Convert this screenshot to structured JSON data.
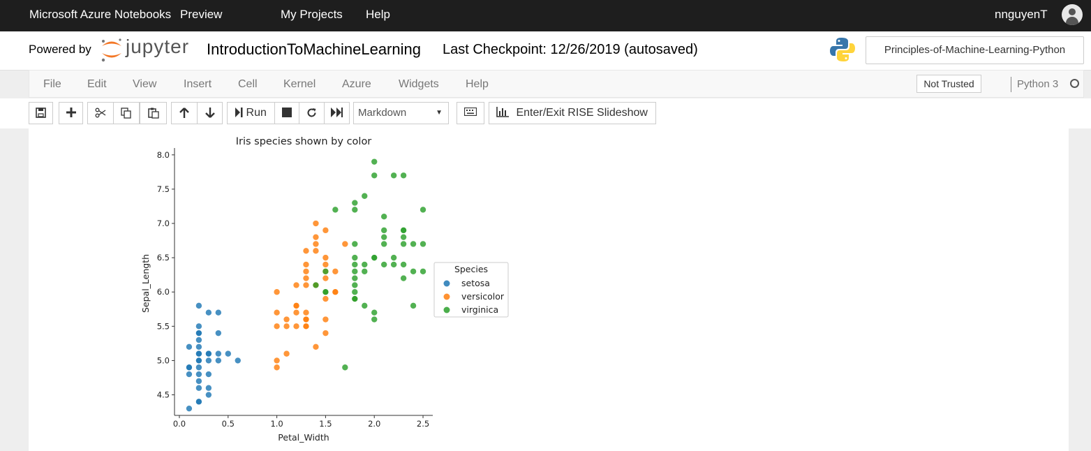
{
  "topbar": {
    "brand": "Microsoft Azure Notebooks",
    "preview": "Preview",
    "my_projects": "My Projects",
    "help": "Help",
    "username": "nnguyenT"
  },
  "header": {
    "powered_by": "Powered by",
    "jupyter_word": "jupyter",
    "notebook_name": "IntroductionToMachineLearning",
    "checkpoint": "Last Checkpoint: 12/26/2019  (autosaved)",
    "project_button": "Principles-of-Machine-Learning-Python"
  },
  "menubar": {
    "items": [
      "File",
      "Edit",
      "View",
      "Insert",
      "Cell",
      "Kernel",
      "Azure",
      "Widgets",
      "Help"
    ],
    "not_trusted": "Not Trusted",
    "kernel_name": "Python 3"
  },
  "toolbar": {
    "run_label": "Run",
    "cell_type": "Markdown",
    "rise_label": "Enter/Exit RISE Slideshow"
  },
  "colors": {
    "setosa": "#1f77b4",
    "versicolor": "#ff7f0e",
    "virginica": "#2ca02c"
  },
  "chart_data": {
    "type": "scatter",
    "title": "Iris species shown by color",
    "xlabel": "Petal_Width",
    "ylabel": "Sepal_Length",
    "xlim": [
      -0.05,
      2.6
    ],
    "ylim": [
      4.2,
      8.1
    ],
    "xticks": [
      "0.0",
      "0.5",
      "1.0",
      "1.5",
      "2.0",
      "2.5"
    ],
    "yticks": [
      "4.5",
      "5.0",
      "5.5",
      "6.0",
      "6.5",
      "7.0",
      "7.5",
      "8.0"
    ],
    "legend": {
      "title": "Species",
      "placement": "right"
    },
    "series": [
      {
        "name": "setosa",
        "x": [
          0.1,
          0.1,
          0.1,
          0.1,
          0.1,
          0.2,
          0.2,
          0.2,
          0.2,
          0.2,
          0.2,
          0.2,
          0.2,
          0.2,
          0.2,
          0.2,
          0.2,
          0.2,
          0.2,
          0.2,
          0.2,
          0.3,
          0.3,
          0.3,
          0.3,
          0.3,
          0.3,
          0.3,
          0.4,
          0.4,
          0.4,
          0.4,
          0.5,
          0.6
        ],
        "y": [
          4.3,
          4.8,
          4.9,
          5.2,
          4.9,
          4.4,
          4.6,
          4.7,
          4.8,
          4.9,
          5.0,
          5.1,
          5.2,
          5.3,
          5.4,
          5.5,
          5.8,
          4.4,
          5.0,
          5.1,
          5.4,
          4.5,
          4.6,
          4.8,
          5.0,
          5.1,
          5.7,
          5.1,
          5.0,
          5.1,
          5.4,
          5.7,
          5.1,
          5.0
        ]
      },
      {
        "name": "versicolor",
        "x": [
          1.0,
          1.0,
          1.0,
          1.0,
          1.0,
          1.1,
          1.1,
          1.1,
          1.2,
          1.2,
          1.2,
          1.2,
          1.2,
          1.3,
          1.3,
          1.3,
          1.3,
          1.3,
          1.3,
          1.3,
          1.3,
          1.3,
          1.3,
          1.4,
          1.4,
          1.4,
          1.4,
          1.4,
          1.4,
          1.4,
          1.5,
          1.5,
          1.5,
          1.5,
          1.5,
          1.5,
          1.5,
          1.5,
          1.5,
          1.6,
          1.6,
          1.6,
          1.7,
          1.8
        ],
        "y": [
          4.9,
          5.0,
          5.5,
          5.7,
          6.0,
          5.1,
          5.5,
          5.6,
          5.5,
          5.7,
          5.8,
          6.1,
          5.8,
          5.5,
          5.6,
          5.7,
          6.2,
          6.3,
          6.4,
          6.6,
          5.5,
          5.6,
          6.1,
          5.2,
          6.1,
          6.6,
          6.7,
          6.8,
          7.0,
          6.1,
          5.4,
          5.6,
          5.9,
          6.0,
          6.2,
          6.3,
          6.4,
          6.5,
          6.9,
          6.0,
          6.3,
          6.0,
          6.7,
          5.9
        ]
      },
      {
        "name": "virginica",
        "x": [
          1.4,
          1.5,
          1.5,
          1.5,
          1.6,
          1.7,
          1.8,
          1.8,
          1.8,
          1.8,
          1.8,
          1.8,
          1.8,
          1.8,
          1.8,
          1.8,
          1.8,
          1.9,
          1.9,
          1.9,
          1.9,
          2.0,
          2.0,
          2.0,
          2.0,
          2.0,
          2.0,
          2.1,
          2.1,
          2.1,
          2.1,
          2.1,
          2.2,
          2.2,
          2.2,
          2.3,
          2.3,
          2.3,
          2.3,
          2.3,
          2.3,
          2.3,
          2.4,
          2.4,
          2.4,
          2.5,
          2.5,
          2.5
        ],
        "y": [
          6.1,
          6.0,
          6.3,
          6.0,
          7.2,
          4.9,
          5.9,
          6.0,
          6.1,
          6.2,
          6.3,
          6.4,
          6.5,
          6.7,
          7.2,
          7.3,
          5.9,
          5.8,
          6.3,
          6.4,
          7.4,
          5.6,
          5.7,
          6.5,
          7.7,
          7.9,
          6.5,
          6.4,
          6.7,
          6.8,
          6.9,
          7.1,
          6.4,
          6.5,
          7.7,
          6.2,
          6.4,
          6.7,
          6.8,
          6.9,
          7.7,
          6.9,
          5.8,
          6.3,
          6.7,
          6.3,
          6.7,
          7.2
        ]
      }
    ]
  }
}
